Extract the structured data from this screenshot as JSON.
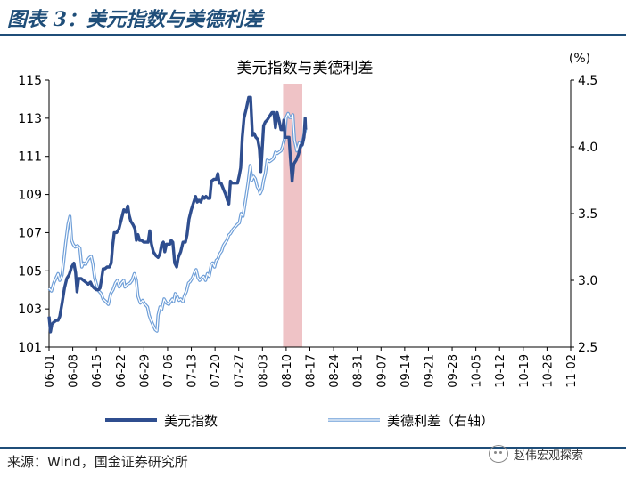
{
  "figure": {
    "title": "图表 3：美元指数与美德利差",
    "source": "来源：Wind，国金证券研究所",
    "watermark": "赵伟宏观探索"
  },
  "colors": {
    "dxy": "#2f4e8f",
    "spread_outer": "#6f9fd8",
    "spread_inner": "#ffffff",
    "highlight": "#efc3c6",
    "title": "#1f4e79"
  },
  "chart_data": {
    "type": "line",
    "title": "美元指数与美德利差",
    "right_axis_unit": "(%)",
    "categories": [
      "06-01",
      "06-08",
      "06-15",
      "06-22",
      "06-29",
      "07-06",
      "07-13",
      "07-20",
      "07-27",
      "08-03",
      "08-10",
      "08-17",
      "08-24",
      "08-31",
      "09-07",
      "09-14",
      "09-21",
      "09-28",
      "10-05",
      "10-12",
      "10-19",
      "10-26",
      "11-02"
    ],
    "y_left": {
      "min": 101,
      "max": 115,
      "ticks": [
        101,
        103,
        105,
        107,
        109,
        111,
        113,
        115
      ]
    },
    "y_right": {
      "min": 2.5,
      "max": 4.5,
      "ticks": [
        "2.5",
        "3.0",
        "3.5",
        "4.0",
        "4.5"
      ]
    },
    "grid": false,
    "legend_position": "bottom",
    "highlight_band": {
      "from": 9.87,
      "to": 10.68
    },
    "series": [
      {
        "name": "美元指数",
        "axis": "left",
        "points": [
          [
            0.0,
            102.6
          ],
          [
            0.06,
            101.8
          ],
          [
            0.12,
            102.2
          ],
          [
            0.2,
            102.3
          ],
          [
            0.3,
            102.4
          ],
          [
            0.38,
            102.4
          ],
          [
            0.45,
            102.6
          ],
          [
            0.55,
            103.3
          ],
          [
            0.65,
            104.1
          ],
          [
            0.75,
            104.6
          ],
          [
            0.85,
            104.8
          ],
          [
            0.95,
            105.2
          ],
          [
            1.05,
            105.4
          ],
          [
            1.12,
            104.9
          ],
          [
            1.18,
            103.9
          ],
          [
            1.25,
            104.6
          ],
          [
            1.35,
            104.6
          ],
          [
            1.45,
            104.5
          ],
          [
            1.55,
            104.4
          ],
          [
            1.65,
            104.3
          ],
          [
            1.75,
            104.4
          ],
          [
            1.82,
            104.2
          ],
          [
            1.9,
            104.1
          ],
          [
            2.0,
            104.0
          ],
          [
            2.08,
            104.0
          ],
          [
            2.15,
            104.1
          ],
          [
            2.22,
            104.6
          ],
          [
            2.28,
            105.1
          ],
          [
            2.35,
            105.1
          ],
          [
            2.45,
            105.2
          ],
          [
            2.55,
            105.2
          ],
          [
            2.62,
            105.4
          ],
          [
            2.68,
            106.3
          ],
          [
            2.75,
            107.0
          ],
          [
            2.85,
            107.0
          ],
          [
            2.95,
            107.2
          ],
          [
            3.05,
            107.7
          ],
          [
            3.15,
            108.2
          ],
          [
            3.25,
            108.1
          ],
          [
            3.32,
            108.4
          ],
          [
            3.38,
            107.9
          ],
          [
            3.45,
            107.6
          ],
          [
            3.55,
            107.4
          ],
          [
            3.62,
            107.2
          ],
          [
            3.68,
            106.6
          ],
          [
            3.75,
            106.9
          ],
          [
            3.82,
            106.6
          ],
          [
            3.9,
            106.6
          ],
          [
            4.0,
            106.5
          ],
          [
            4.1,
            106.5
          ],
          [
            4.18,
            106.5
          ],
          [
            4.25,
            107.1
          ],
          [
            4.32,
            106.4
          ],
          [
            4.4,
            106.0
          ],
          [
            4.5,
            105.8
          ],
          [
            4.6,
            105.7
          ],
          [
            4.68,
            105.9
          ],
          [
            4.75,
            106.4
          ],
          [
            4.82,
            106.5
          ],
          [
            4.88,
            106.0
          ],
          [
            4.95,
            106.4
          ],
          [
            5.02,
            106.4
          ],
          [
            5.1,
            106.4
          ],
          [
            5.15,
            106.6
          ],
          [
            5.22,
            106.5
          ],
          [
            5.3,
            105.4
          ],
          [
            5.38,
            105.2
          ],
          [
            5.45,
            105.7
          ],
          [
            5.55,
            106.0
          ],
          [
            5.65,
            106.5
          ],
          [
            5.75,
            106.5
          ],
          [
            5.82,
            106.9
          ],
          [
            5.9,
            107.7
          ],
          [
            6.0,
            108.2
          ],
          [
            6.1,
            108.6
          ],
          [
            6.18,
            108.9
          ],
          [
            6.25,
            108.6
          ],
          [
            6.32,
            108.7
          ],
          [
            6.4,
            108.6
          ],
          [
            6.48,
            108.9
          ],
          [
            6.55,
            108.8
          ],
          [
            6.62,
            108.9
          ],
          [
            6.7,
            108.8
          ],
          [
            6.78,
            108.8
          ],
          [
            6.85,
            109.7
          ],
          [
            6.95,
            109.8
          ],
          [
            7.05,
            109.8
          ],
          [
            7.12,
            110.1
          ],
          [
            7.18,
            109.6
          ],
          [
            7.25,
            109.6
          ],
          [
            7.35,
            109.3
          ],
          [
            7.45,
            109.0
          ],
          [
            7.52,
            108.7
          ],
          [
            7.58,
            108.5
          ],
          [
            7.65,
            109.7
          ],
          [
            7.72,
            109.6
          ],
          [
            7.8,
            109.6
          ],
          [
            7.88,
            109.6
          ],
          [
            7.95,
            109.6
          ],
          [
            8.02,
            110.0
          ],
          [
            8.08,
            110.4
          ],
          [
            8.15,
            112.0
          ],
          [
            8.22,
            113.0
          ],
          [
            8.32,
            113.5
          ],
          [
            8.42,
            114.1
          ],
          [
            8.5,
            114.1
          ],
          [
            8.58,
            112.1
          ],
          [
            8.65,
            112.2
          ],
          [
            8.72,
            112.0
          ],
          [
            8.8,
            111.9
          ],
          [
            8.87,
            111.4
          ],
          [
            8.93,
            110.2
          ],
          [
            9.0,
            111.6
          ],
          [
            9.05,
            112.6
          ],
          [
            9.12,
            112.8
          ],
          [
            9.2,
            112.9
          ],
          [
            9.3,
            113.1
          ],
          [
            9.4,
            113.3
          ],
          [
            9.48,
            113.3
          ],
          [
            9.55,
            112.5
          ],
          [
            9.62,
            113.3
          ],
          [
            9.7,
            112.9
          ],
          [
            9.78,
            112.4
          ],
          [
            9.85,
            112.4
          ],
          [
            9.9,
            112.9
          ],
          [
            9.95,
            112.0
          ],
          [
            10.05,
            112.0
          ],
          [
            10.12,
            112.0
          ],
          [
            10.18,
            110.9
          ],
          [
            10.25,
            109.7
          ],
          [
            10.32,
            110.6
          ],
          [
            10.42,
            110.8
          ],
          [
            10.52,
            111.1
          ],
          [
            10.62,
            111.6
          ],
          [
            10.68,
            111.6
          ],
          [
            10.75,
            112.0
          ],
          [
            10.8,
            113.0
          ],
          [
            10.82,
            112.4
          ]
        ]
      },
      {
        "name": "美德利差（右轴）",
        "axis": "right",
        "points": [
          [
            0.0,
            2.94
          ],
          [
            0.1,
            2.92
          ],
          [
            0.2,
            2.98
          ],
          [
            0.3,
            3.02
          ],
          [
            0.38,
            3.05
          ],
          [
            0.45,
            3.0
          ],
          [
            0.55,
            3.04
          ],
          [
            0.62,
            3.15
          ],
          [
            0.7,
            3.28
          ],
          [
            0.8,
            3.42
          ],
          [
            0.88,
            3.48
          ],
          [
            0.95,
            3.3
          ],
          [
            1.02,
            3.27
          ],
          [
            1.1,
            3.25
          ],
          [
            1.2,
            3.26
          ],
          [
            1.3,
            3.24
          ],
          [
            1.38,
            3.1
          ],
          [
            1.45,
            3.13
          ],
          [
            1.55,
            3.12
          ],
          [
            1.62,
            3.15
          ],
          [
            1.7,
            3.17
          ],
          [
            1.78,
            3.18
          ],
          [
            1.85,
            3.12
          ],
          [
            1.92,
            3.02
          ],
          [
            2.0,
            2.97
          ],
          [
            2.1,
            2.92
          ],
          [
            2.2,
            2.9
          ],
          [
            2.28,
            2.86
          ],
          [
            2.4,
            2.84
          ],
          [
            2.5,
            2.82
          ],
          [
            2.6,
            2.9
          ],
          [
            2.7,
            2.93
          ],
          [
            2.8,
            2.98
          ],
          [
            2.88,
            3.0
          ],
          [
            2.96,
            2.95
          ],
          [
            3.05,
            2.98
          ],
          [
            3.15,
            3.0
          ],
          [
            3.2,
            2.95
          ],
          [
            3.3,
            2.97
          ],
          [
            3.42,
            2.98
          ],
          [
            3.5,
            3.0
          ],
          [
            3.6,
            3.05
          ],
          [
            3.68,
            3.0
          ],
          [
            3.75,
            2.88
          ],
          [
            3.85,
            2.83
          ],
          [
            3.95,
            2.85
          ],
          [
            4.05,
            2.82
          ],
          [
            4.15,
            2.8
          ],
          [
            4.22,
            2.74
          ],
          [
            4.3,
            2.7
          ],
          [
            4.4,
            2.66
          ],
          [
            4.48,
            2.63
          ],
          [
            4.55,
            2.62
          ],
          [
            4.6,
            2.74
          ],
          [
            4.68,
            2.8
          ],
          [
            4.75,
            2.78
          ],
          [
            4.85,
            2.86
          ],
          [
            4.95,
            2.83
          ],
          [
            5.05,
            2.82
          ],
          [
            5.12,
            2.84
          ],
          [
            5.2,
            2.86
          ],
          [
            5.25,
            2.84
          ],
          [
            5.32,
            2.9
          ],
          [
            5.4,
            2.88
          ],
          [
            5.48,
            2.85
          ],
          [
            5.55,
            2.86
          ],
          [
            5.65,
            2.84
          ],
          [
            5.7,
            2.88
          ],
          [
            5.8,
            2.92
          ],
          [
            5.88,
            2.98
          ],
          [
            5.95,
            2.99
          ],
          [
            6.05,
            3.02
          ],
          [
            6.12,
            3.05
          ],
          [
            6.2,
            3.08
          ],
          [
            6.28,
            3.02
          ],
          [
            6.35,
            3.0
          ],
          [
            6.45,
            3.02
          ],
          [
            6.52,
            3.03
          ],
          [
            6.6,
            3.0
          ],
          [
            6.68,
            3.05
          ],
          [
            6.75,
            3.03
          ],
          [
            6.85,
            3.12
          ],
          [
            6.9,
            3.13
          ],
          [
            6.98,
            3.1
          ],
          [
            7.05,
            3.15
          ],
          [
            7.12,
            3.16
          ],
          [
            7.2,
            3.2
          ],
          [
            7.28,
            3.22
          ],
          [
            7.35,
            3.26
          ],
          [
            7.42,
            3.28
          ],
          [
            7.5,
            3.3
          ],
          [
            7.58,
            3.34
          ],
          [
            7.65,
            3.35
          ],
          [
            7.75,
            3.38
          ],
          [
            7.85,
            3.4
          ],
          [
            7.95,
            3.42
          ],
          [
            8.02,
            3.43
          ],
          [
            8.1,
            3.5
          ],
          [
            8.18,
            3.48
          ],
          [
            8.25,
            3.56
          ],
          [
            8.32,
            3.64
          ],
          [
            8.4,
            3.74
          ],
          [
            8.48,
            3.86
          ],
          [
            8.55,
            3.75
          ],
          [
            8.62,
            3.78
          ],
          [
            8.7,
            3.76
          ],
          [
            8.78,
            3.7
          ],
          [
            8.85,
            3.68
          ],
          [
            8.9,
            3.65
          ],
          [
            8.98,
            3.68
          ],
          [
            9.05,
            3.75
          ],
          [
            9.12,
            3.8
          ],
          [
            9.2,
            3.9
          ],
          [
            9.3,
            3.89
          ],
          [
            9.38,
            3.9
          ],
          [
            9.45,
            3.91
          ],
          [
            9.5,
            3.93
          ],
          [
            9.55,
            3.96
          ],
          [
            9.62,
            3.95
          ],
          [
            9.7,
            3.96
          ],
          [
            9.78,
            3.97
          ],
          [
            9.85,
            4.0
          ],
          [
            9.92,
            4.05
          ],
          [
            10.0,
            4.22
          ],
          [
            10.08,
            4.25
          ],
          [
            10.15,
            4.22
          ],
          [
            10.22,
            4.22
          ],
          [
            10.28,
            4.24
          ],
          [
            10.35,
            4.05
          ],
          [
            10.45,
            3.97
          ],
          [
            10.55,
            4.03
          ],
          [
            10.62,
            4.0
          ],
          [
            10.7,
            4.05
          ],
          [
            10.8,
            4.12
          ],
          [
            10.82,
            4.14
          ]
        ]
      }
    ]
  }
}
